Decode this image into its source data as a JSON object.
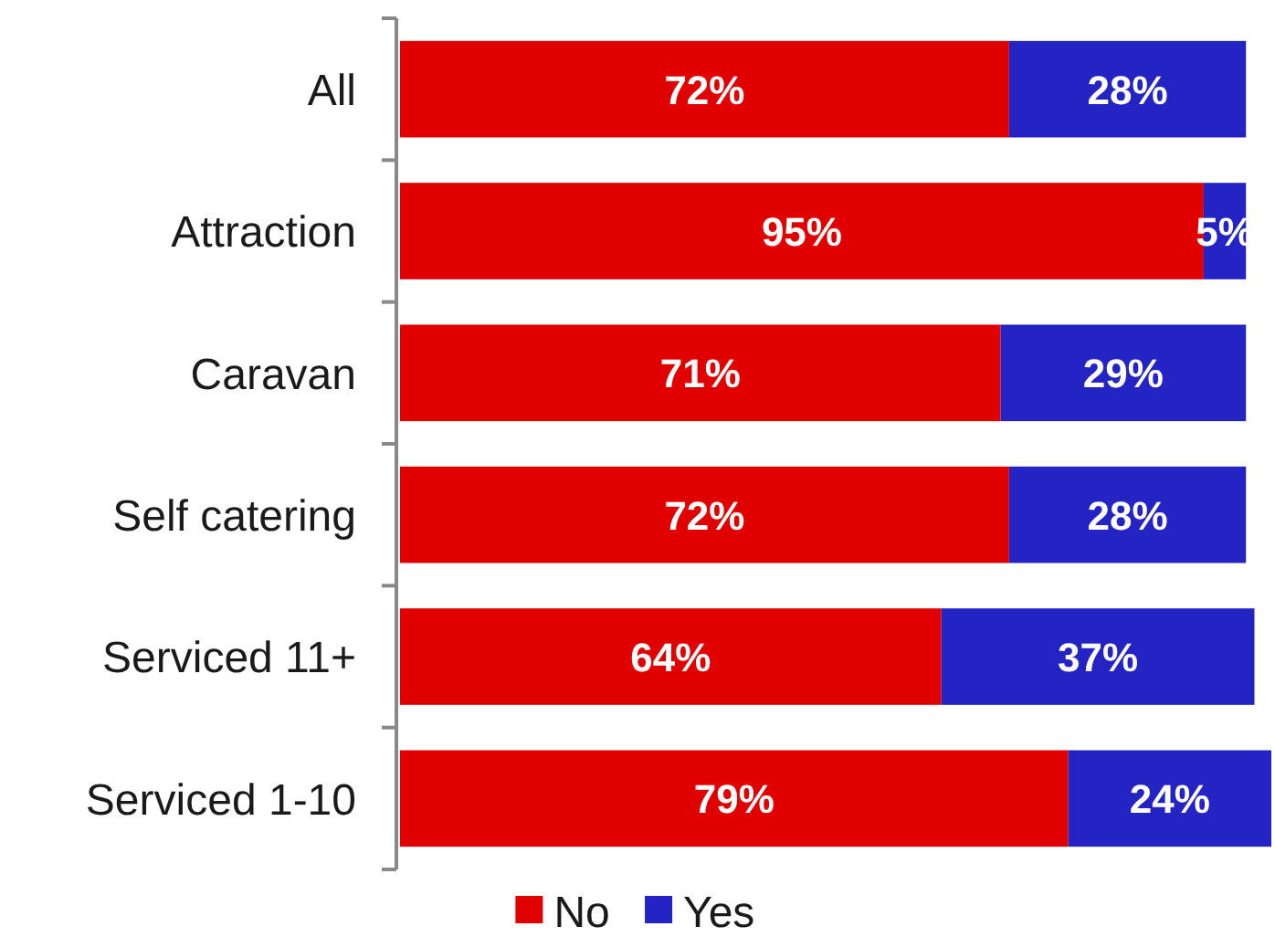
{
  "chart_data": {
    "type": "bar",
    "orientation": "horizontal",
    "stacked": true,
    "categories": [
      "All",
      "Attraction",
      "Caravan",
      "Self catering",
      "Serviced 11+",
      "Serviced 1-10"
    ],
    "series": [
      {
        "name": "No",
        "color": "#e00000",
        "values": [
          72,
          95,
          71,
          72,
          64,
          79
        ],
        "value_labels": [
          "72%",
          "95%",
          "71%",
          "72%",
          "64%",
          "79%"
        ]
      },
      {
        "name": "Yes",
        "color": "#2424c4",
        "values": [
          28,
          5,
          29,
          28,
          37,
          24
        ],
        "value_labels": [
          "28%",
          "5%",
          "29%",
          "28%",
          "37%",
          "24%"
        ]
      }
    ],
    "xlim": [
      0,
      103
    ],
    "legend": "bottom"
  }
}
